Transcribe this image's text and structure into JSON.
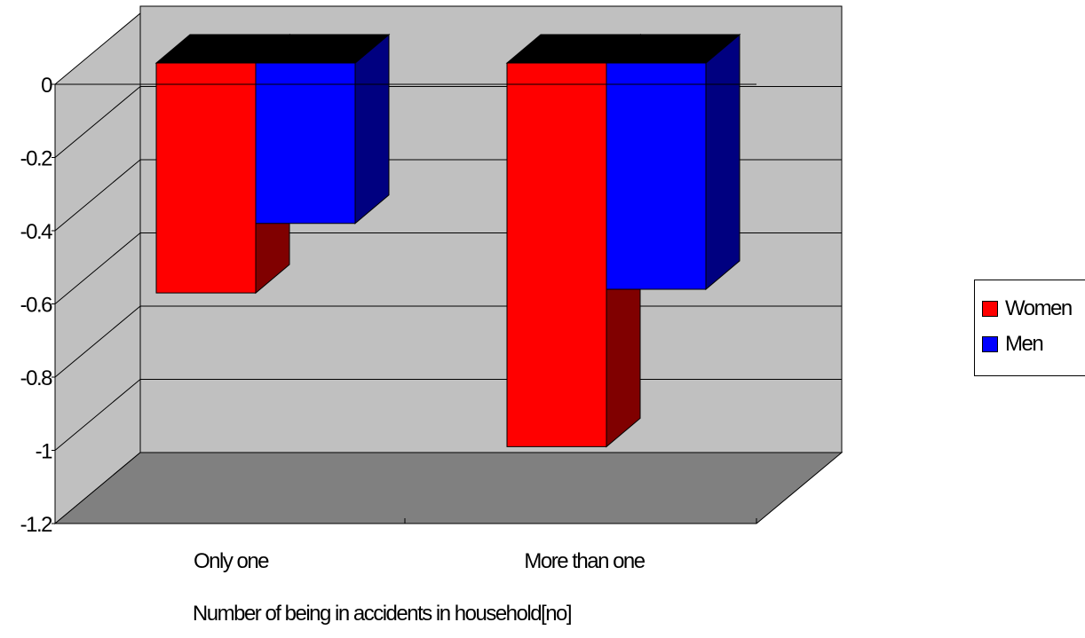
{
  "chart_data": {
    "type": "bar",
    "categories": [
      "Only one",
      "More than one"
    ],
    "series": [
      {
        "name": "Women",
        "values": [
          -0.57,
          -0.99
        ]
      },
      {
        "name": "Men",
        "values": [
          -0.38,
          -0.56
        ]
      }
    ],
    "xlabel": "Number of being in accidents in household[no]",
    "ylabel": "",
    "ylim": [
      -1.2,
      0
    ],
    "yticks": [
      "0",
      "-0.2",
      "-0.4",
      "-0.6",
      "-0.8",
      "-1",
      "-1.2"
    ],
    "grid": true,
    "legend_position": "right",
    "style": "3d"
  },
  "colors": {
    "women": "#ff0000",
    "women_side": "#800000",
    "men": "#0000ff",
    "men_side": "#000080",
    "bar_top": "#000000",
    "back_wall": "#c0c0c0",
    "floor": "#808080"
  }
}
